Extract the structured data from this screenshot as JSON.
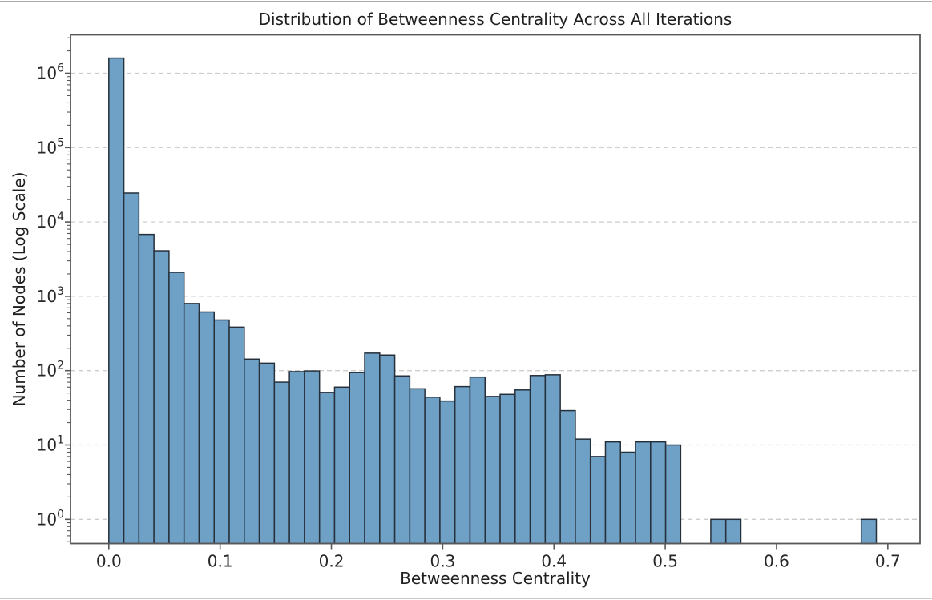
{
  "chart_data": {
    "type": "bar",
    "subtype": "histogram",
    "title": "Distribution of Betweenness Centrality Across All Iterations",
    "xlabel": "Betweenness Centrality",
    "ylabel": "Number of Nodes (Log Scale)",
    "y_scale": "log",
    "grid": "horizontal dashed",
    "legend": "none",
    "x_tick_labels": [
      "0.0",
      "0.1",
      "0.2",
      "0.3",
      "0.4",
      "0.5",
      "0.6",
      "0.7"
    ],
    "x_tick_values": [
      0.0,
      0.1,
      0.2,
      0.3,
      0.4,
      0.5,
      0.6,
      0.7
    ],
    "y_tick_base": "10",
    "y_tick_exponents": [
      0,
      1,
      2,
      3,
      4,
      5,
      6
    ],
    "xlim": [
      -0.034,
      0.729
    ],
    "ylim_log10": [
      -0.33,
      6.84
    ],
    "bin_start": 0.0,
    "bin_width": 0.013523,
    "bar_values": [
      1600000,
      24500,
      6800,
      4100,
      2100,
      800,
      615,
      480,
      385,
      143,
      126,
      70,
      97,
      99,
      51,
      60,
      94,
      172,
      162,
      85,
      57,
      44,
      39,
      61,
      82,
      45,
      48,
      55,
      86,
      88,
      29,
      12,
      7,
      11,
      8,
      11,
      11,
      10,
      0,
      0,
      1,
      1,
      0,
      0,
      0,
      0,
      0,
      0,
      0,
      0,
      1
    ],
    "colors": {
      "bar_fill": "#6FA0C6",
      "bar_edge": "#26303B",
      "gridline": "#cdcdcd",
      "spine": "#58585a",
      "tick_text": "#262626",
      "background": "#ffffff"
    }
  }
}
